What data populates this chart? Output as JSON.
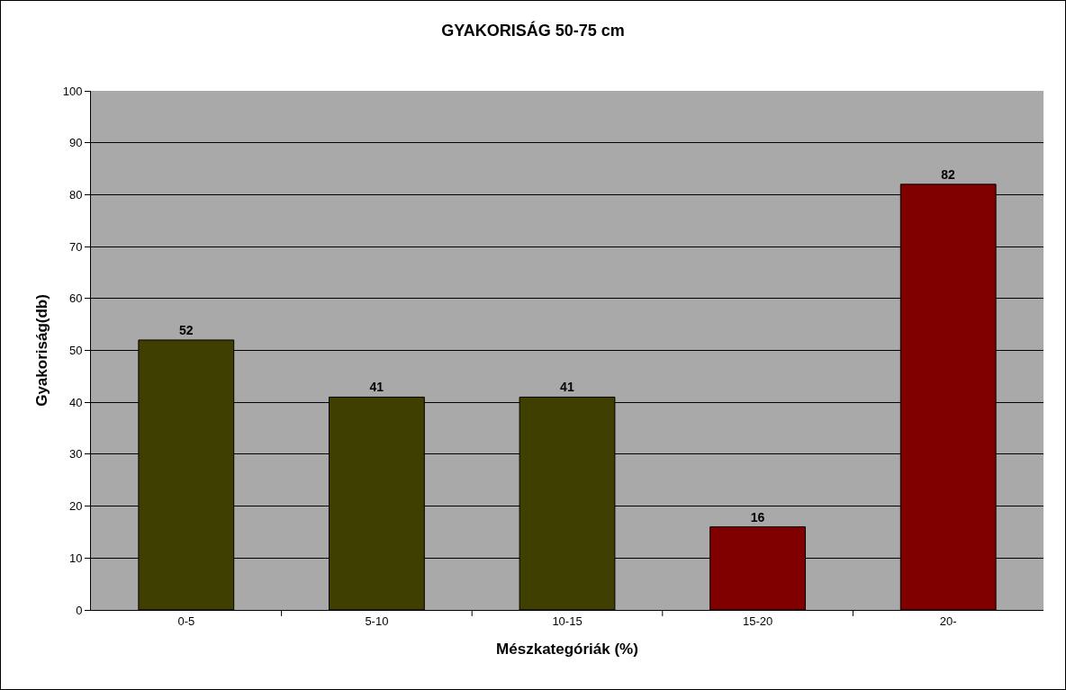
{
  "chart_data": {
    "type": "bar",
    "title": "GYAKORISÁG 50-75 cm",
    "xlabel": "Mészkategóriák (%)",
    "ylabel": "Gyakoriság(db)",
    "categories": [
      "0-5",
      "5-10",
      "10-15",
      "15-20",
      "20-"
    ],
    "values": [
      52,
      41,
      41,
      16,
      82
    ],
    "colors": [
      "#3f3f00",
      "#3f3f00",
      "#3f3f00",
      "#800000",
      "#800000"
    ],
    "ylim": [
      0,
      100
    ],
    "yticks": [
      0,
      10,
      20,
      30,
      40,
      50,
      60,
      70,
      80,
      90,
      100
    ],
    "grid": "y",
    "data_labels": true
  }
}
